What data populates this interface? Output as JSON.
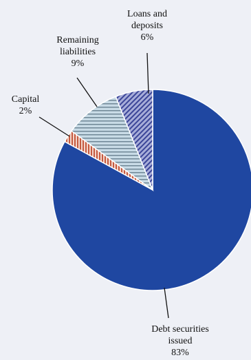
{
  "chart_data": {
    "type": "pie",
    "title": "",
    "slices": [
      {
        "label_lines": [
          "Debt securities",
          "issued"
        ],
        "value": 83,
        "value_label": "83%",
        "color": "#1f47a1",
        "pattern": "solid"
      },
      {
        "label_lines": [
          "Capital"
        ],
        "value": 2,
        "value_label": "2%",
        "color": "#c9705a",
        "pattern": "vertical-stripes"
      },
      {
        "label_lines": [
          "Remaining",
          "liabilities"
        ],
        "value": 9,
        "value_label": "9%",
        "color": "#a9c1d2",
        "pattern": "horizontal-stripes"
      },
      {
        "label_lines": [
          "Loans and",
          "deposits"
        ],
        "value": 6,
        "value_label": "6%",
        "color": "#7f87c6",
        "pattern": "diagonal-stripes"
      }
    ],
    "start_angle_deg": 0,
    "direction": "clockwise",
    "legend": "none"
  }
}
